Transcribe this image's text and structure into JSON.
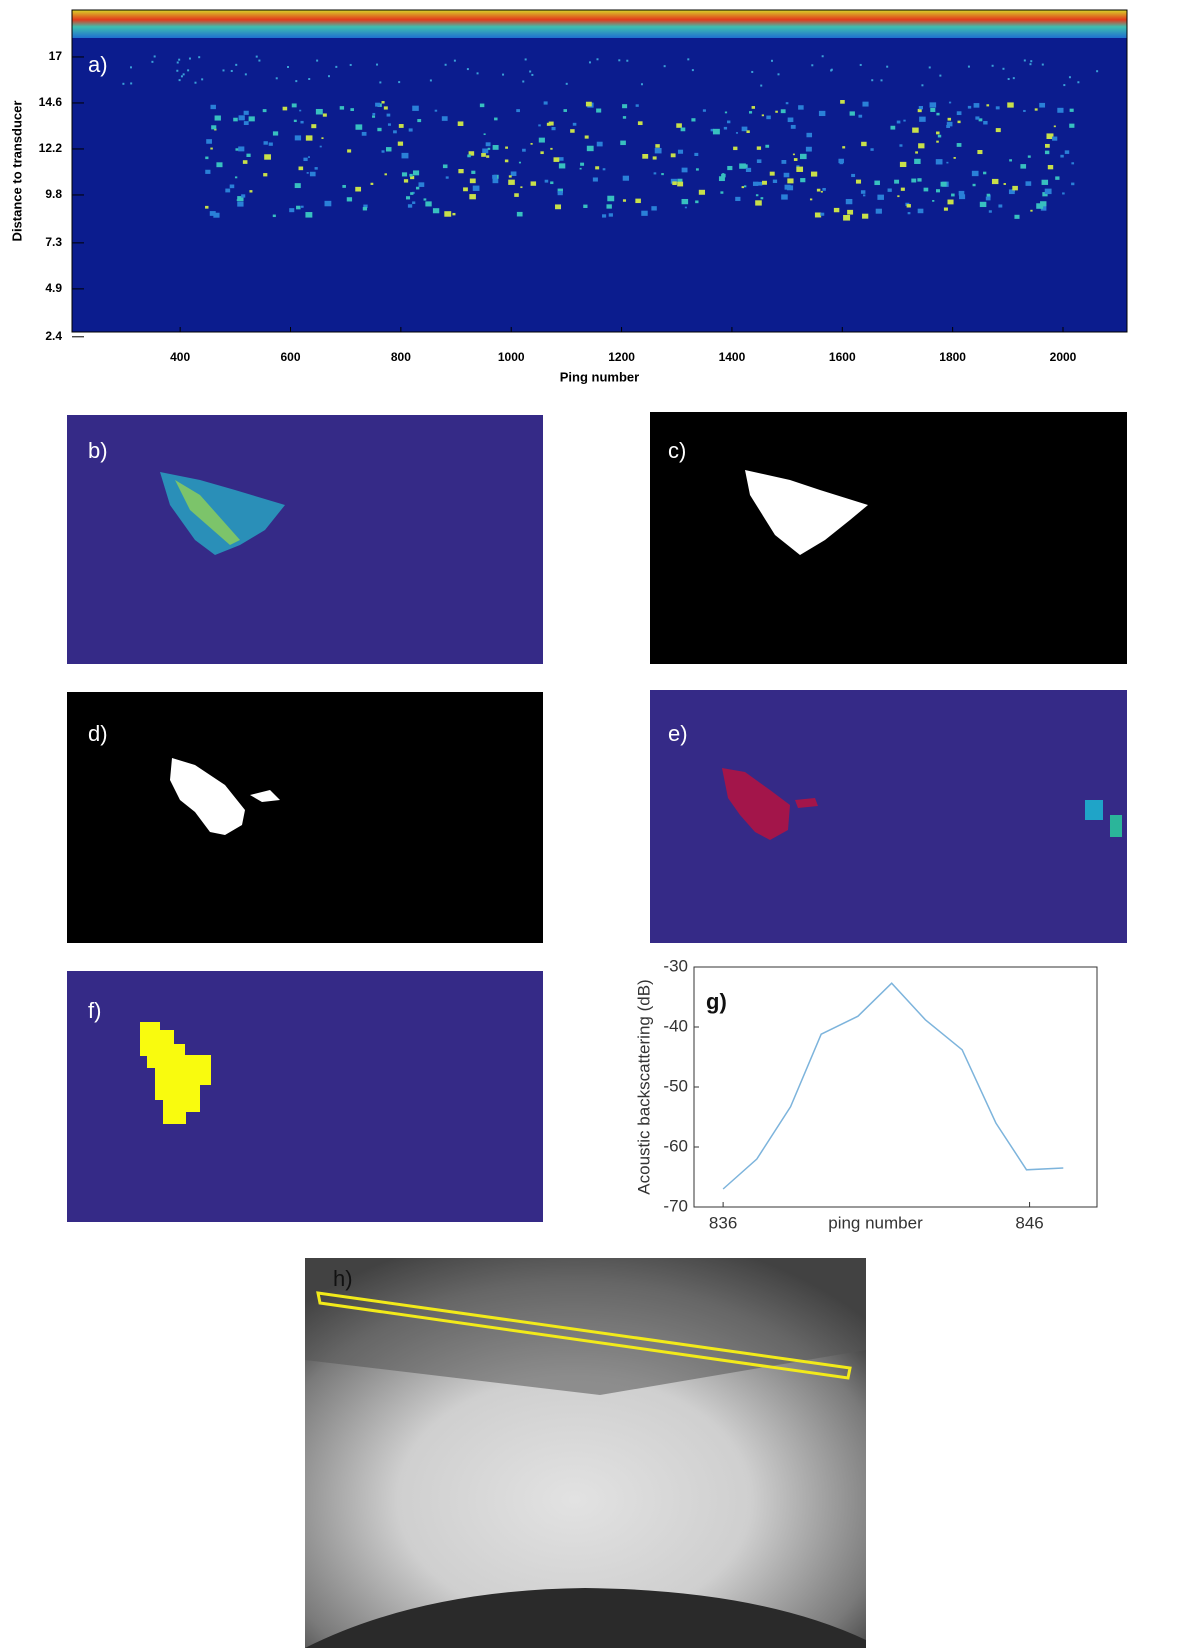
{
  "chart_data": [
    {
      "type": "echogram",
      "annotation": "a)",
      "xlabel": "Ping number",
      "ylabel": "Distance to transducer",
      "xlim": [
        204,
        2116
      ],
      "ylim": [
        2.65,
        19.45
      ],
      "xticks": [
        400,
        600,
        800,
        1000,
        1200,
        1400,
        1600,
        1800,
        2000
      ],
      "yticks": [
        2.4,
        4.9,
        7.3,
        9.8,
        12.2,
        14.6,
        17
      ]
    },
    {
      "type": "line",
      "annotation": "g)",
      "xlabel": "ping number",
      "ylabel": "Acoustic backscattering (dB)",
      "x": [
        836,
        837.1,
        838.2,
        839.2,
        840.4,
        841.5,
        842.6,
        843.8,
        844.9,
        845.9,
        847.1
      ],
      "series": [
        {
          "color": "#7db4dc",
          "values": [
            -67,
            -62,
            -53.3,
            -41.2,
            -38.2,
            -32.7,
            -38.8,
            -43.8,
            -56,
            -63.8,
            -63.5
          ]
        }
      ],
      "xlim": [
        835.05,
        848.2
      ],
      "ylim": [
        -70,
        -30
      ],
      "xticks": [
        836,
        846
      ],
      "yticks": [
        -70,
        -60,
        -50,
        -40,
        -30
      ]
    }
  ],
  "panels": [
    {
      "label": "b)"
    },
    {
      "label": "c)"
    },
    {
      "label": "d)"
    },
    {
      "label": "e)"
    },
    {
      "label": "f)"
    },
    {
      "label": "h)"
    }
  ]
}
